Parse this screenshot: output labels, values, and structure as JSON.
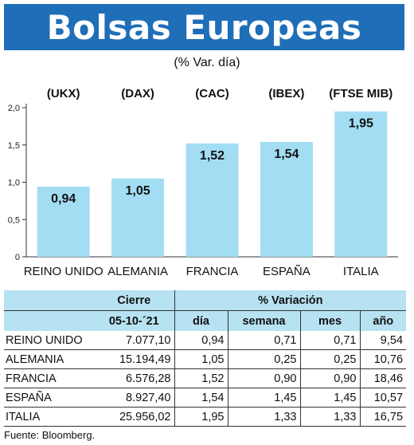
{
  "title": "Bolsas Europeas",
  "subtitle": "(% Var. día)",
  "chart_data": {
    "type": "bar",
    "indices": [
      "(UKX)",
      "(DAX)",
      "(CAC)",
      "(IBEX)",
      "(FTSE MIB)"
    ],
    "categories": [
      "REINO UNIDO",
      "ALEMANIA",
      "FRANCIA",
      "ESPAÑA",
      "ITALIA"
    ],
    "values": [
      0.94,
      1.05,
      1.52,
      1.54,
      1.95
    ],
    "value_labels": [
      "0,94",
      "1,05",
      "1,52",
      "1,54",
      "1,95"
    ],
    "yticks": [
      0,
      0.5,
      1.0,
      1.5,
      2.0
    ],
    "ytick_labels": [
      "0",
      "0,5",
      "1,0",
      "1,5",
      "2,0"
    ],
    "ylim": [
      0,
      2.0
    ],
    "grid": false,
    "bar_color": "#a3ddf3"
  },
  "table": {
    "header_cierre": "Cierre",
    "header_variacion": "% Variación",
    "date": "05-10-´21",
    "columns": [
      "día",
      "semana",
      "mes",
      "año"
    ],
    "rows": [
      {
        "name": "REINO UNIDO",
        "cierre": "7.077,10",
        "dia": "0,94",
        "semana": "0,71",
        "mes": "0,71",
        "ano": "9,54"
      },
      {
        "name": "ALEMANIA",
        "cierre": "15.194,49",
        "dia": "1,05",
        "semana": "0,25",
        "mes": "0,25",
        "ano": "10,76"
      },
      {
        "name": "FRANCIA",
        "cierre": "6.576,28",
        "dia": "1,52",
        "semana": "0,90",
        "mes": "0,90",
        "ano": "18,46"
      },
      {
        "name": "ESPAÑA",
        "cierre": "8.927,40",
        "dia": "1,54",
        "semana": "1,45",
        "mes": "1,45",
        "ano": "10,57"
      },
      {
        "name": "ITALIA",
        "cierre": "25.956,02",
        "dia": "1,95",
        "semana": "1,33",
        "mes": "1,33",
        "ano": "16,75"
      }
    ]
  },
  "source": "Fuente: Bloomberg.",
  "colors": {
    "title_bg": "#1f6eb8",
    "table_header_bg": "#b7e2f2"
  }
}
